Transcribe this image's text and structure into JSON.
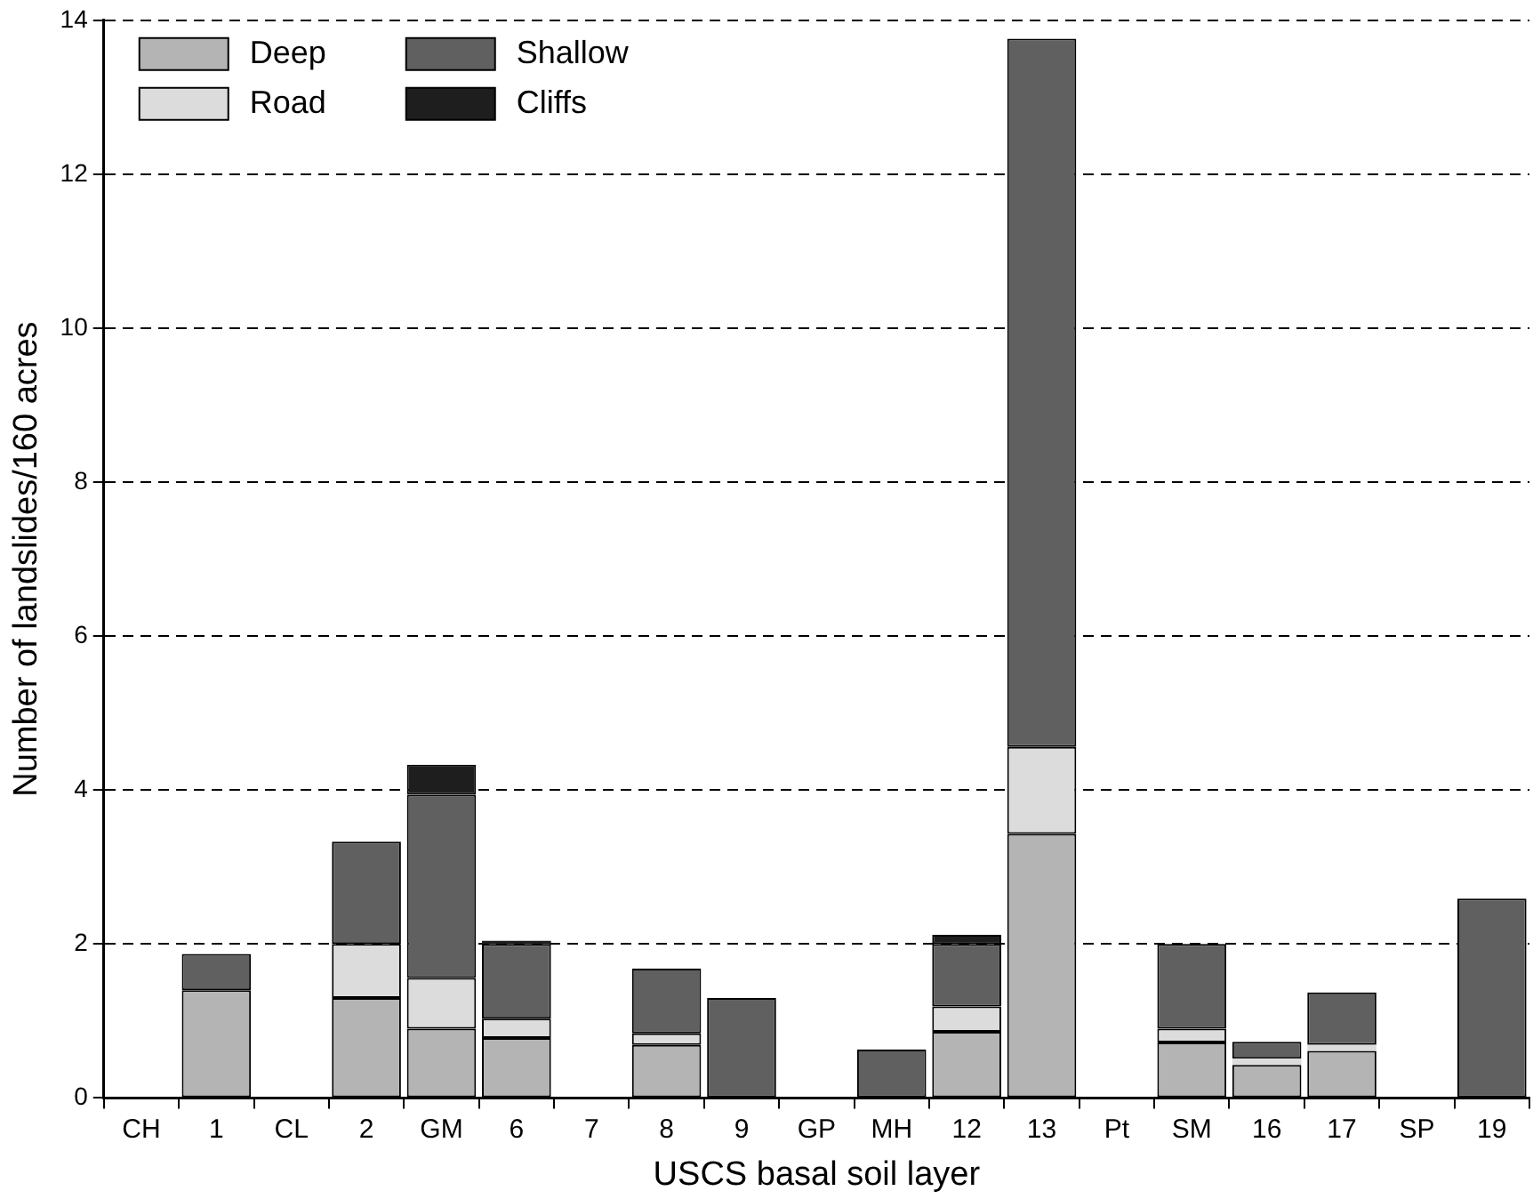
{
  "chart_data": {
    "type": "bar",
    "stacked": true,
    "xlabel": "USCS basal soil layer",
    "ylabel": "Number of landslides/160 acres",
    "categories": [
      "CH",
      "1",
      "CL",
      "2",
      "GM",
      "6",
      "7",
      "8",
      "9",
      "GP",
      "MH",
      "12",
      "13",
      "Pt",
      "SM",
      "16",
      "17",
      "SP",
      "19"
    ],
    "series": [
      {
        "name": "Deep",
        "color": "#b4b4b4",
        "values": [
          null,
          1.4,
          null,
          1.3,
          0.9,
          0.78,
          null,
          0.69,
          null,
          null,
          null,
          0.86,
          3.43,
          null,
          0.72,
          0.43,
          0.61,
          null,
          null
        ]
      },
      {
        "name": "Road",
        "color": "#dcdcdc",
        "values": [
          null,
          null,
          null,
          0.7,
          0.66,
          0.25,
          null,
          0.15,
          null,
          null,
          null,
          0.33,
          1.13,
          null,
          0.18,
          0.08,
          0.08,
          null,
          null
        ]
      },
      {
        "name": "Shallow",
        "color": "#606060",
        "values": [
          null,
          0.47,
          null,
          1.33,
          2.38,
          0.97,
          null,
          0.84,
          1.3,
          null,
          0.63,
          0.81,
          9.2,
          null,
          1.1,
          0.22,
          0.68,
          null,
          2.59
        ]
      },
      {
        "name": "Cliffs",
        "color": "#1e1e1e",
        "values": [
          null,
          null,
          null,
          null,
          0.39,
          0.04,
          null,
          null,
          null,
          null,
          null,
          0.12,
          null,
          null,
          null,
          null,
          null,
          null,
          null
        ]
      }
    ],
    "ylim": [
      0,
      14
    ],
    "yticks": [
      0,
      2,
      4,
      6,
      8,
      10,
      12,
      14
    ],
    "grid": "y",
    "legend": "top left"
  }
}
